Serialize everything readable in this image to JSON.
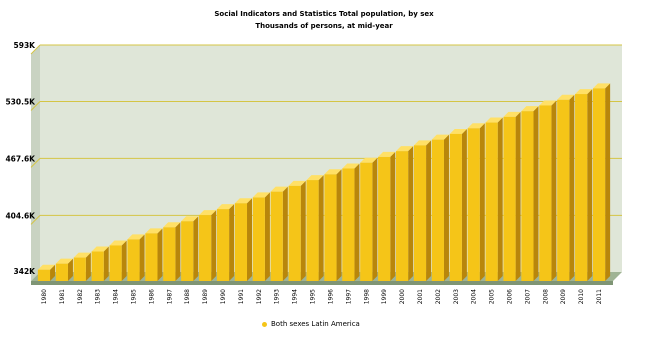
{
  "chart_data": {
    "type": "bar",
    "title": "Social Indicators and Statistics Total population, by sex",
    "subtitle": "Thousands of persons, at mid-year",
    "xlabel": "",
    "ylabel": "",
    "y_ticks": [
      {
        "value": 342,
        "label": "342K"
      },
      {
        "value": 404.6,
        "label": "404.6K"
      },
      {
        "value": 467.6,
        "label": "467.6K"
      },
      {
        "value": 530.5,
        "label": "530.5K"
      },
      {
        "value": 593,
        "label": "593K"
      }
    ],
    "ylim": [
      342,
      593
    ],
    "grid": true,
    "legend": "bottom",
    "categories": [
      "1980",
      "1981",
      "1982",
      "1983",
      "1984",
      "1985",
      "1986",
      "1987",
      "1988",
      "1989",
      "1990",
      "1991",
      "1992",
      "1993",
      "1994",
      "1995",
      "1996",
      "1997",
      "1998",
      "1999",
      "2000",
      "2001",
      "2002",
      "2003",
      "2004",
      "2005",
      "2006",
      "2007",
      "2008",
      "2009",
      "2010",
      "2011"
    ],
    "series": [
      {
        "name": "Both sexes Latin America",
        "color": "#f5c518",
        "values": [
          354.5,
          361.2,
          367.9,
          374.6,
          381.3,
          388.0,
          394.7,
          401.4,
          408.1,
          414.8,
          421.5,
          428.0,
          434.4,
          440.8,
          447.2,
          453.6,
          460.0,
          466.4,
          472.8,
          479.2,
          485.6,
          492.0,
          498.3,
          504.6,
          510.9,
          517.2,
          523.5,
          529.8,
          536.1,
          542.4,
          548.7,
          555.0
        ]
      }
    ]
  },
  "colors": {
    "plot_bg": "#dfe6d8",
    "grid": "#d4c545",
    "floor": "#9fb394",
    "bar_front": "#f5c518",
    "bar_side": "#b8860b",
    "bar_top": "#ffe066"
  }
}
